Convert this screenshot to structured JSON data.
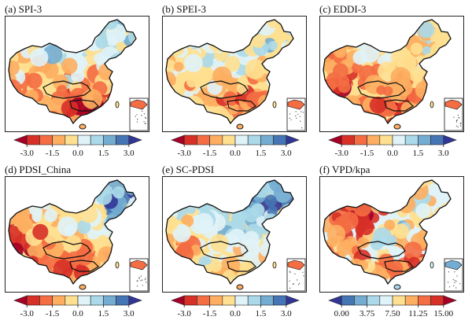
{
  "figure": {
    "panels": [
      {
        "id": "a",
        "title": "(a) SPI-3",
        "palette": "rdylbu",
        "ticks": [
          "-3.0",
          "-1.5",
          "0.0",
          "1.5",
          "3.0"
        ],
        "map_type": "diverging-dry-south"
      },
      {
        "id": "b",
        "title": "(b) SPEI-3",
        "palette": "rdylbu",
        "ticks": [
          "-3.0",
          "-1.5",
          "0.0",
          "1.5",
          "3.0"
        ],
        "map_type": "diverging-mixed"
      },
      {
        "id": "c",
        "title": "(c) EDDI-3",
        "palette": "rdylbu",
        "ticks": [
          "-3.0",
          "-1.5",
          "0.0",
          "1.5",
          "3.0"
        ],
        "map_type": "diverging-dry-west"
      },
      {
        "id": "d",
        "title": "(d) PDSI_China",
        "palette": "rdylbu",
        "ticks": [
          "-3.0",
          "-1.5",
          "0.0",
          "1.5",
          "3.0"
        ],
        "map_type": "diverging-wet-northeast"
      },
      {
        "id": "e",
        "title": "(e) SC-PDSI",
        "palette": "rdylbu",
        "ticks": [
          "-3.0",
          "-1.5",
          "0.0",
          "1.5",
          "3.0"
        ],
        "map_type": "diverging-wet-north"
      },
      {
        "id": "f",
        "title": "(f) VPD/kpa",
        "palette": "burd",
        "ticks": [
          "0.00",
          "3.75",
          "7.50",
          "11.25",
          "15.00"
        ],
        "map_type": "sequential-vpd"
      }
    ],
    "palettes": {
      "rdylbu": [
        "#a50026",
        "#d73027",
        "#f46d43",
        "#fdae61",
        "#fee090",
        "#e0f3f8",
        "#abd9e9",
        "#74add1",
        "#4575b4",
        "#313695"
      ],
      "burd": [
        "#313695",
        "#4575b4",
        "#74add1",
        "#abd9e9",
        "#e0f3f8",
        "#fee090",
        "#fdae61",
        "#f46d43",
        "#d73027",
        "#a50026"
      ]
    }
  }
}
